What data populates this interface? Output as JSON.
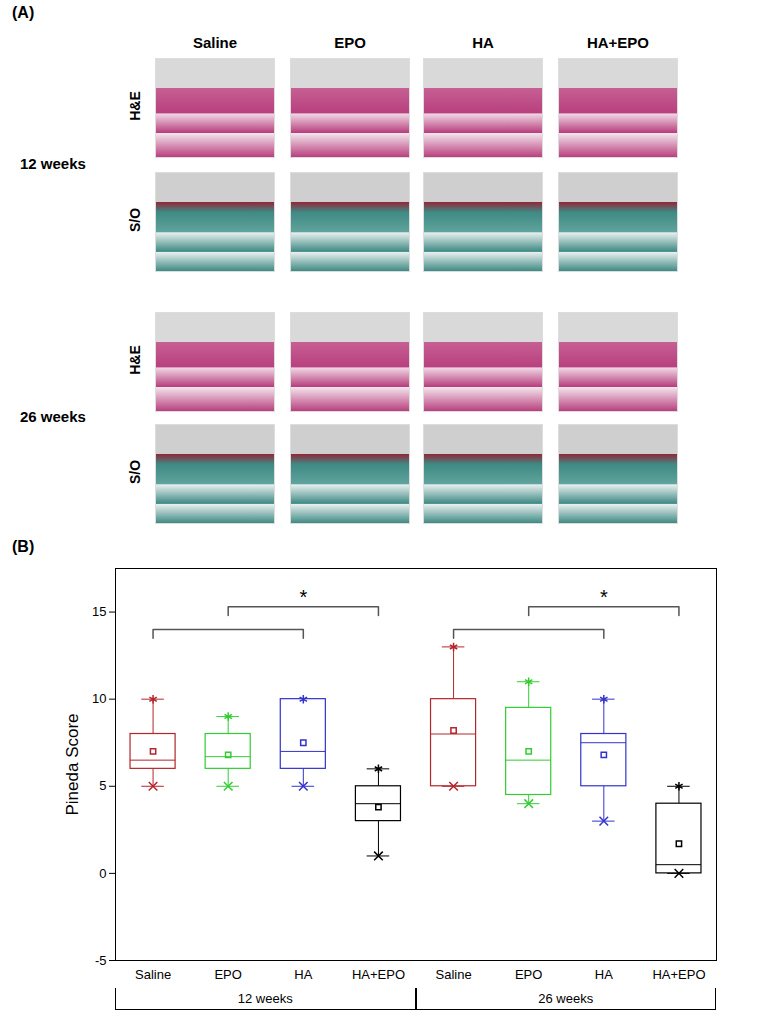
{
  "panel_a": {
    "label": "(A)",
    "columns": [
      "Saline",
      "EPO",
      "HA",
      "HA+EPO"
    ],
    "time_points": [
      "12 weeks",
      "26 weeks"
    ],
    "stains": [
      "H&E",
      "S/O"
    ]
  },
  "chart_data": {
    "type": "box",
    "title": "(B)",
    "y_label": "Pineda Score",
    "ylim": [
      -5,
      17.5
    ],
    "yticks": [
      -5,
      0,
      5,
      10,
      15
    ],
    "series": [
      {
        "name": "12 weeks",
        "categories": [
          "Saline",
          "EPO",
          "HA",
          "HA+EPO"
        ],
        "colors": [
          "#b3262b",
          "#33cc33",
          "#3333cc",
          "#000000"
        ],
        "min": [
          5,
          5,
          5,
          1
        ],
        "q1": [
          6,
          6,
          6,
          3
        ],
        "median": [
          6.5,
          6.7,
          7,
          4
        ],
        "q3": [
          8,
          8,
          10,
          5
        ],
        "max": [
          10,
          9,
          10,
          6
        ],
        "mean": [
          7,
          6.8,
          7.5,
          3.8
        ],
        "significance": [
          {
            "from": "Saline",
            "to": "HA",
            "y": 14
          },
          {
            "from": "EPO",
            "to": "HA+EPO",
            "y": 15.3,
            "label": "*"
          }
        ]
      },
      {
        "name": "26 weeks",
        "categories": [
          "Saline",
          "EPO",
          "HA",
          "HA+EPO"
        ],
        "colors": [
          "#b3262b",
          "#33cc33",
          "#3333cc",
          "#000000"
        ],
        "min": [
          5,
          4,
          3,
          0
        ],
        "q1": [
          5,
          4.5,
          5,
          0
        ],
        "median": [
          8,
          6.5,
          7.5,
          0.5
        ],
        "q3": [
          10,
          9.5,
          8,
          4
        ],
        "max": [
          13,
          11,
          10,
          5
        ],
        "mean": [
          8.2,
          7,
          6.8,
          1.7
        ],
        "significance": [
          {
            "from": "Saline",
            "to": "HA",
            "y": 14
          },
          {
            "from": "EPO",
            "to": "HA+EPO",
            "y": 15.3,
            "label": "*"
          }
        ]
      }
    ]
  }
}
